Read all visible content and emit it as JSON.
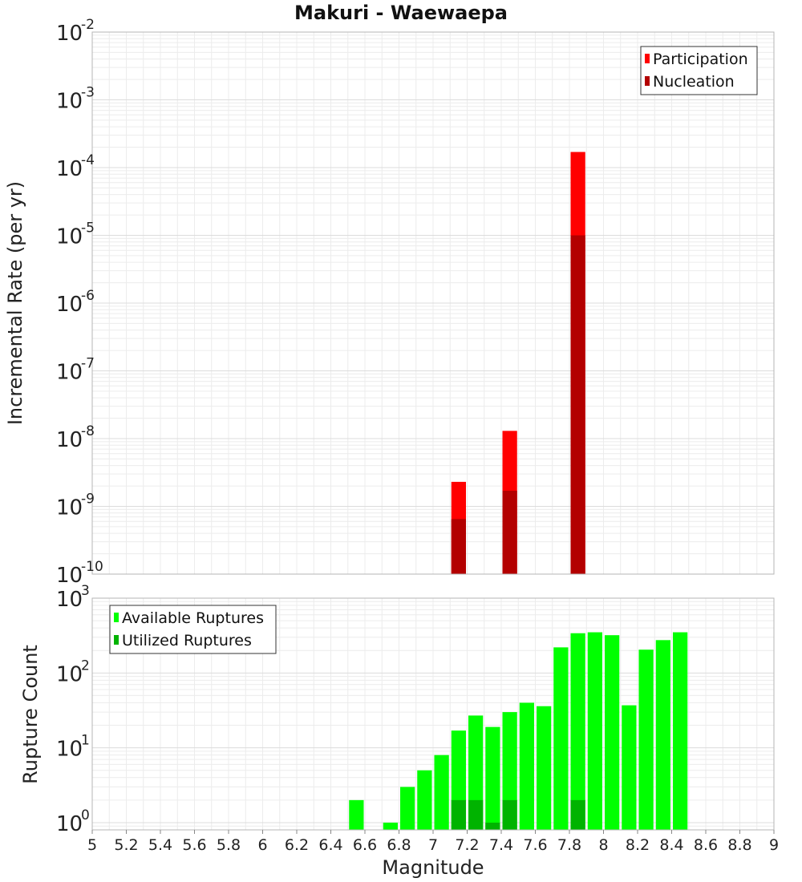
{
  "chart_data": [
    {
      "type": "bar",
      "panel": "top",
      "title": "Makuri - Waewaepa",
      "ylabel": "Incremental Rate (per yr)",
      "xlabel": "",
      "xlim": [
        5,
        9
      ],
      "ylim": [
        1e-10,
        0.01
      ],
      "yscale": "log",
      "y_ticks": [
        {
          "base": "10",
          "exp": "-10"
        },
        {
          "base": "10",
          "exp": "-9"
        },
        {
          "base": "10",
          "exp": "-8"
        },
        {
          "base": "10",
          "exp": "-7"
        },
        {
          "base": "10",
          "exp": "-6"
        },
        {
          "base": "10",
          "exp": "-5"
        },
        {
          "base": "10",
          "exp": "-4"
        },
        {
          "base": "10",
          "exp": "-3"
        },
        {
          "base": "10",
          "exp": "-2"
        }
      ],
      "grid": true,
      "legend_position": "top-right",
      "bar_width": 0.1,
      "series": [
        {
          "name": "Participation",
          "color": "#ff0000",
          "x": [
            7.15,
            7.45,
            7.85
          ],
          "values": [
            2.3e-09,
            1.3e-08,
            0.00017
          ]
        },
        {
          "name": "Nucleation",
          "color": "#b30000",
          "x": [
            7.15,
            7.45,
            7.85
          ],
          "values": [
            6.5e-10,
            1.7e-09,
            1e-05
          ]
        }
      ]
    },
    {
      "type": "bar",
      "panel": "bottom",
      "title": "",
      "ylabel": "Rupture Count",
      "xlabel": "Magnitude",
      "xlim": [
        5,
        9
      ],
      "ylim": [
        0.8,
        1000
      ],
      "yscale": "log",
      "y_ticks": [
        {
          "base": "10",
          "exp": "0"
        },
        {
          "base": "10",
          "exp": "1"
        },
        {
          "base": "10",
          "exp": "2"
        },
        {
          "base": "10",
          "exp": "3"
        }
      ],
      "x_tick_labels": [
        "5",
        "5.2",
        "5.4",
        "5.6",
        "5.8",
        "6",
        "6.2",
        "6.4",
        "6.6",
        "6.8",
        "7",
        "7.2",
        "7.4",
        "7.6",
        "7.8",
        "8",
        "8.2",
        "8.4",
        "8.6",
        "8.8",
        "9"
      ],
      "grid": true,
      "legend_position": "top-left",
      "bar_width": 0.1,
      "series": [
        {
          "name": "Available Ruptures",
          "color": "#00ff00",
          "x": [
            6.55,
            6.75,
            6.85,
            6.95,
            7.05,
            7.15,
            7.25,
            7.35,
            7.45,
            7.55,
            7.65,
            7.75,
            7.85,
            7.95,
            8.05,
            8.15,
            8.25,
            8.35,
            8.45
          ],
          "values": [
            2,
            1,
            3,
            5,
            8,
            17,
            27,
            19,
            30,
            40,
            36,
            220,
            340,
            350,
            320,
            37,
            205,
            275,
            350
          ]
        },
        {
          "name": "Utilized Ruptures",
          "color": "#00b300",
          "x": [
            7.15,
            7.25,
            7.35,
            7.45,
            7.85
          ],
          "values": [
            2,
            2,
            1,
            2,
            2
          ]
        }
      ]
    }
  ]
}
